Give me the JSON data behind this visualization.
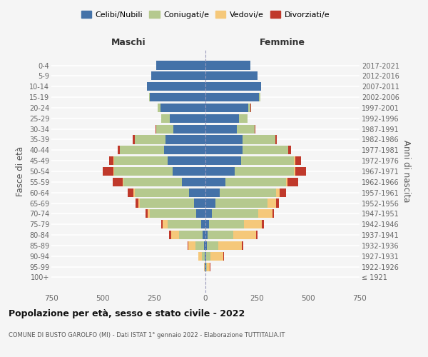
{
  "age_groups": [
    "100+",
    "95-99",
    "90-94",
    "85-89",
    "80-84",
    "75-79",
    "70-74",
    "65-69",
    "60-64",
    "55-59",
    "50-54",
    "45-49",
    "40-44",
    "35-39",
    "30-34",
    "25-29",
    "20-24",
    "15-19",
    "10-14",
    "5-9",
    "0-4"
  ],
  "birth_years": [
    "≤ 1921",
    "1922-1926",
    "1927-1931",
    "1932-1936",
    "1937-1941",
    "1942-1946",
    "1947-1951",
    "1952-1956",
    "1957-1961",
    "1962-1966",
    "1967-1971",
    "1972-1976",
    "1977-1981",
    "1982-1986",
    "1987-1991",
    "1992-1996",
    "1997-2001",
    "2002-2006",
    "2007-2011",
    "2012-2016",
    "2017-2021"
  ],
  "maschi": {
    "celibi": [
      0,
      2,
      4,
      8,
      15,
      20,
      45,
      55,
      80,
      115,
      160,
      185,
      200,
      195,
      155,
      175,
      220,
      270,
      285,
      265,
      240
    ],
    "coniugati": [
      0,
      2,
      12,
      40,
      115,
      165,
      225,
      265,
      265,
      285,
      285,
      260,
      215,
      150,
      85,
      40,
      12,
      4,
      0,
      0,
      0
    ],
    "vedovi": [
      0,
      2,
      18,
      35,
      38,
      22,
      12,
      8,
      4,
      4,
      2,
      2,
      0,
      0,
      0,
      0,
      0,
      0,
      0,
      0,
      0
    ],
    "divorziati": [
      0,
      0,
      2,
      4,
      8,
      8,
      8,
      12,
      28,
      48,
      52,
      22,
      12,
      8,
      4,
      2,
      2,
      0,
      0,
      0,
      0
    ]
  },
  "femmine": {
    "nubili": [
      0,
      2,
      4,
      8,
      12,
      18,
      32,
      48,
      68,
      98,
      142,
      172,
      182,
      182,
      152,
      162,
      208,
      262,
      272,
      252,
      218
    ],
    "coniugate": [
      0,
      6,
      22,
      55,
      125,
      170,
      225,
      255,
      275,
      295,
      288,
      260,
      220,
      158,
      88,
      42,
      12,
      4,
      0,
      0,
      0
    ],
    "vedove": [
      0,
      14,
      62,
      115,
      108,
      88,
      68,
      42,
      18,
      8,
      6,
      4,
      2,
      0,
      0,
      0,
      0,
      0,
      0,
      0,
      0
    ],
    "divorziate": [
      0,
      2,
      4,
      6,
      8,
      8,
      8,
      12,
      32,
      52,
      52,
      28,
      12,
      8,
      4,
      2,
      2,
      0,
      0,
      0,
      0
    ]
  },
  "colors": {
    "celibi": "#4472a8",
    "coniugati": "#b5c98e",
    "vedovi": "#f5c87a",
    "divorziati": "#c0392b"
  },
  "legend_labels": [
    "Celibi/Nubili",
    "Coniugati/e",
    "Vedovi/e",
    "Divorziati/e"
  ],
  "xlim": 750,
  "title": "Popolazione per età, sesso e stato civile - 2022",
  "subtitle": "COMUNE DI BUSTO GAROLFO (MI) - Dati ISTAT 1° gennaio 2022 - Elaborazione TUTTITALIA.IT",
  "xlabel_maschi": "Maschi",
  "xlabel_femmine": "Femmine",
  "ylabel": "Fasce di età",
  "ylabel_right": "Anni di nascita",
  "bg_color": "#f5f5f5",
  "grid_color": "#ffffff"
}
